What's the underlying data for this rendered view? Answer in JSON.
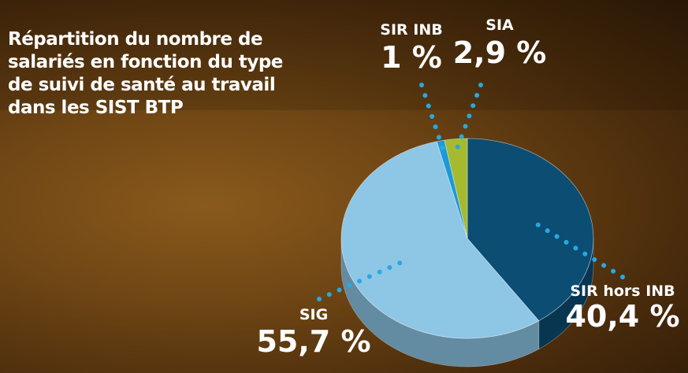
{
  "chart_data": {
    "type": "pie",
    "title": "Répartition du nombre de salariés en fonction du type de suivi de santé au travail dans les SIST BTP",
    "categories": [
      "SIR hors INB",
      "SIG",
      "SIR INB",
      "SIA"
    ],
    "values": [
      40.4,
      55.7,
      1,
      2.9
    ],
    "value_labels": [
      "40,4 %",
      "55,7 %",
      "1 %",
      "2,9 %"
    ],
    "colors": [
      "#0b4d73",
      "#8ec6e6",
      "#1b9ad6",
      "#a5ba2e"
    ]
  }
}
